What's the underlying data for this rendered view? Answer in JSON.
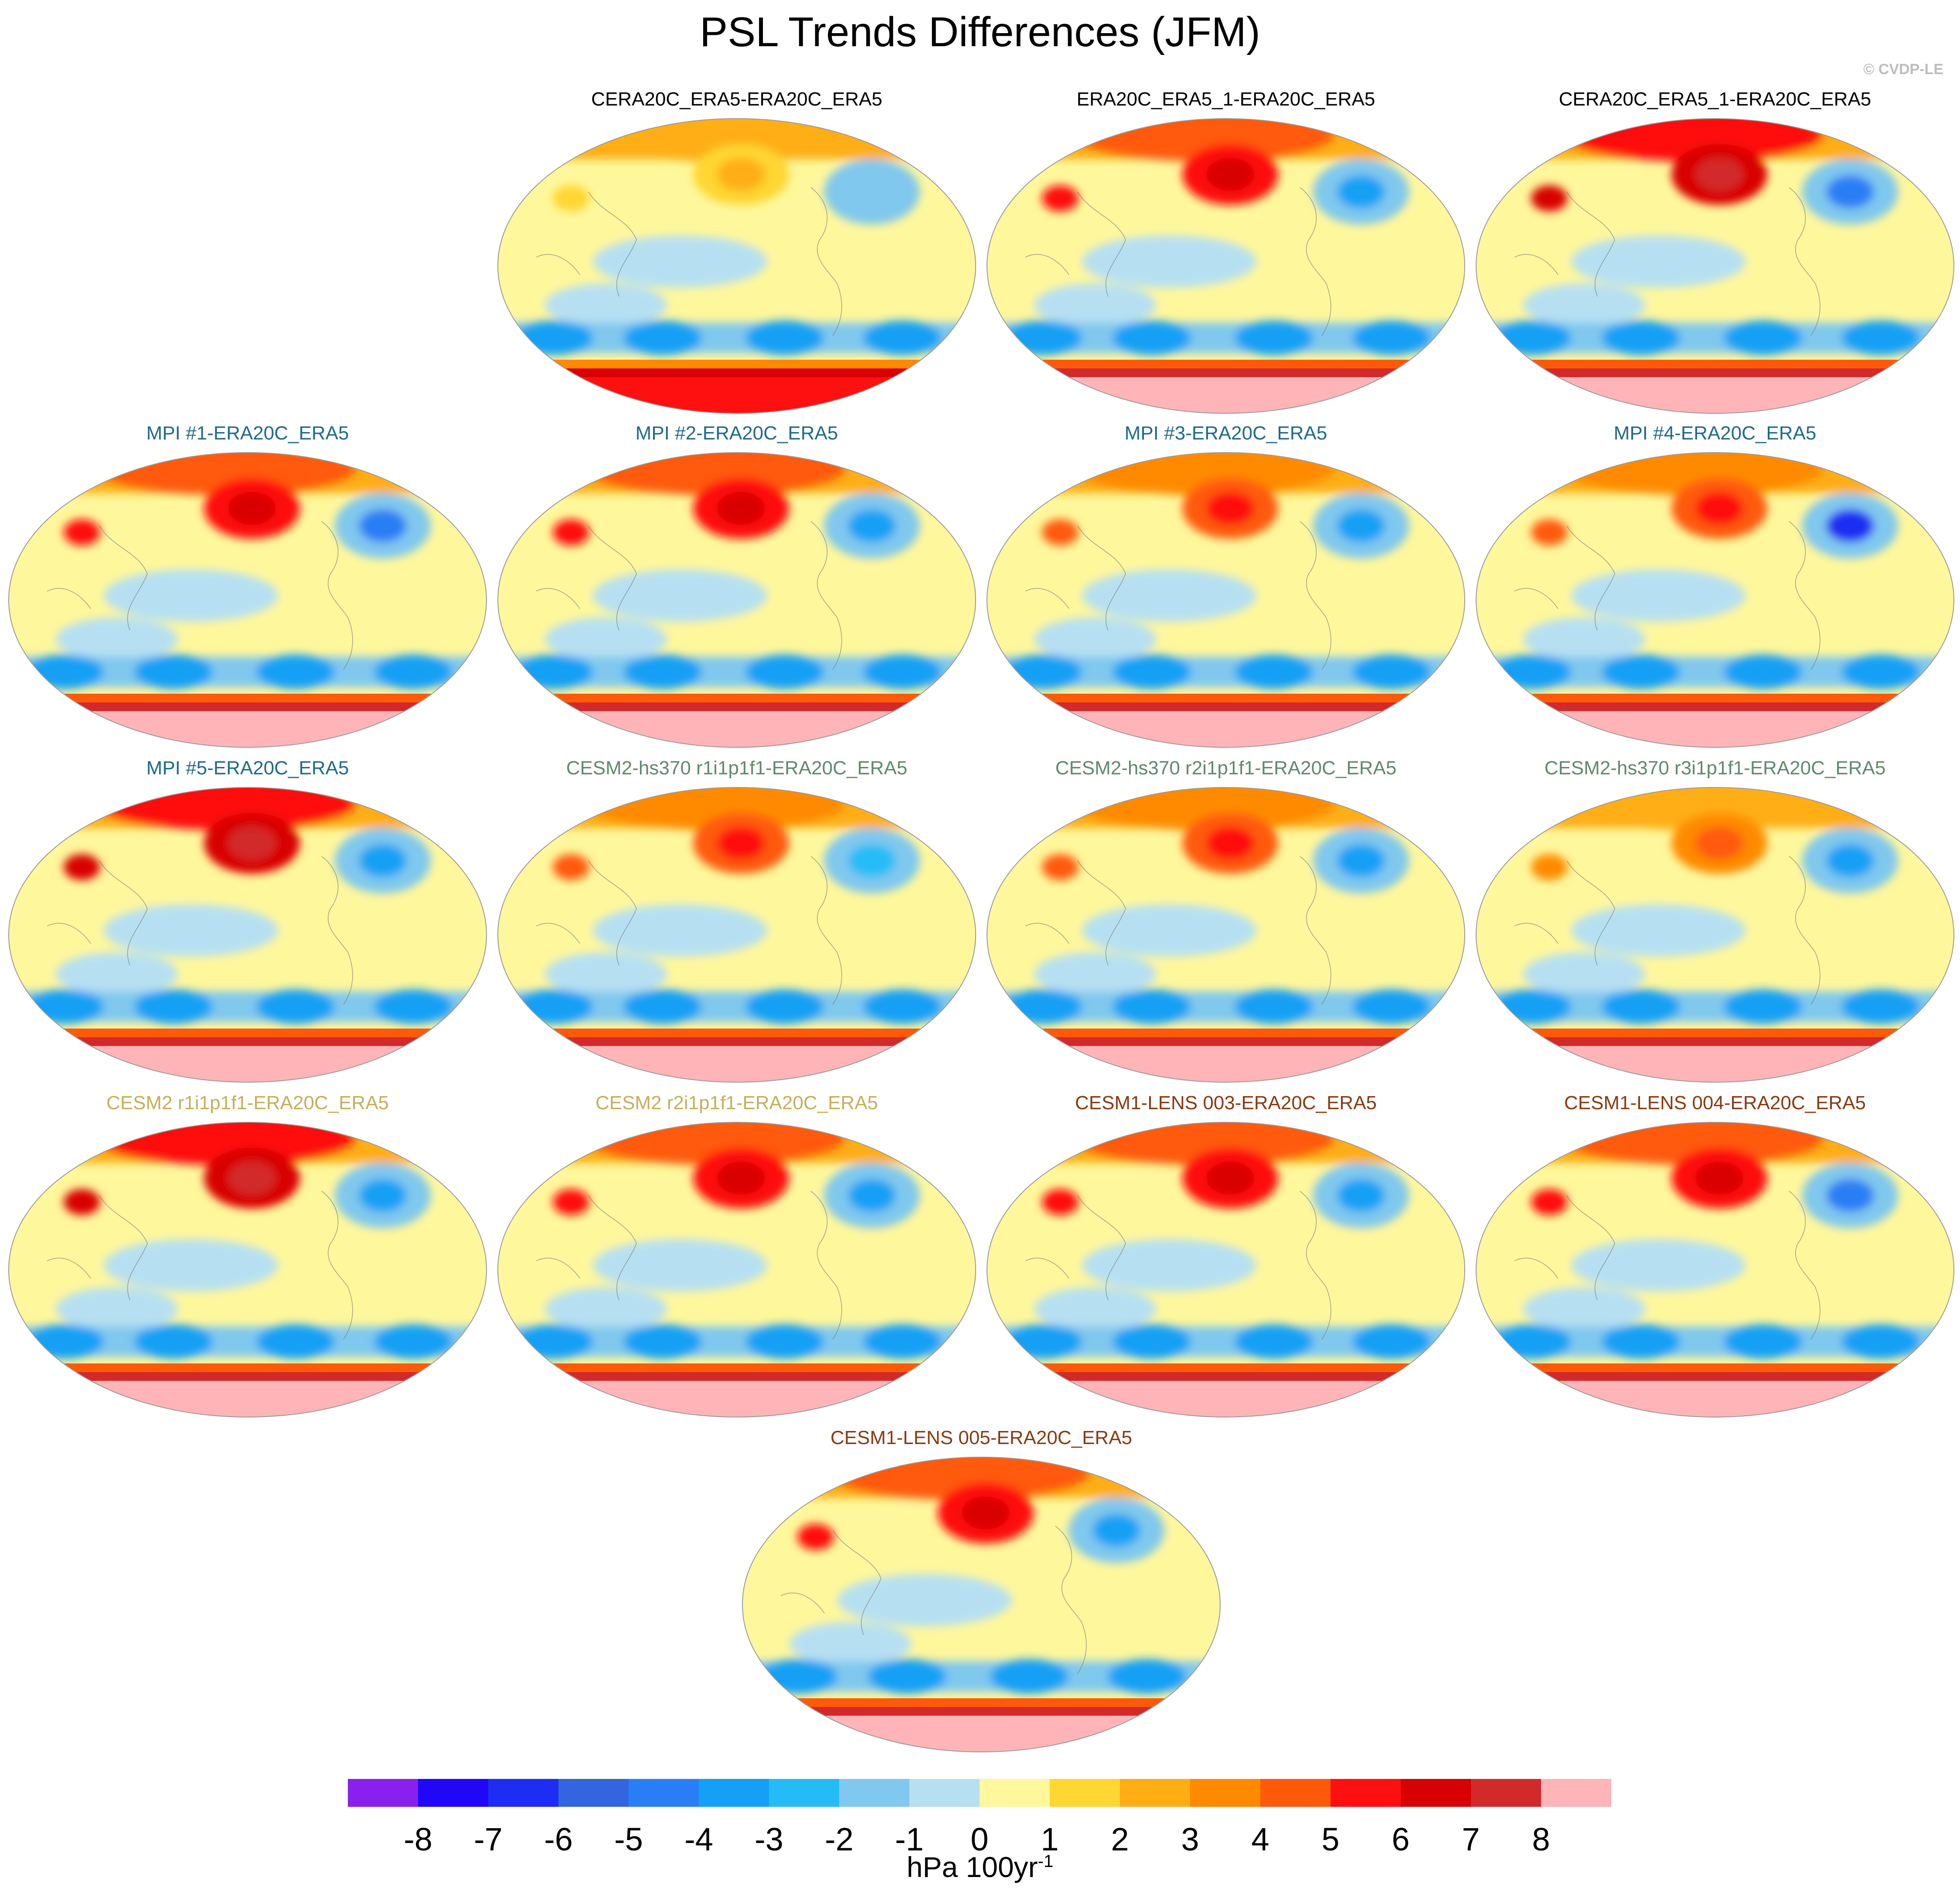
{
  "title": "PSL Trends Differences (JFM)",
  "credit": "© CVDP-LE",
  "colorbar": {
    "tick_labels": [
      "-8",
      "-7",
      "-6",
      "-5",
      "-4",
      "-3",
      "-2",
      "-1",
      "0",
      "1",
      "2",
      "3",
      "4",
      "5",
      "6",
      "7",
      "8"
    ],
    "unit_base": "hPa 100yr",
    "unit_sup": "-1",
    "colors": [
      "#8a20ee",
      "#2008f7",
      "#1d2ef2",
      "#3266de",
      "#2a7ef5",
      "#13a0f5",
      "#25bcf5",
      "#80c8ee",
      "#b6e0f2",
      "#fff79c",
      "#ffd632",
      "#ffae14",
      "#ff8a00",
      "#ff5a0a",
      "#ff1010",
      "#d80000",
      "#d22a2a",
      "#ffb4b8"
    ]
  },
  "chart_data": {
    "type": "heatmap",
    "title": "PSL Trends Differences (JFM)",
    "projection": "global map panels",
    "levels": [
      -8,
      -7,
      -6,
      -5,
      -4,
      -3,
      -2,
      -1,
      0,
      1,
      2,
      3,
      4,
      5,
      6,
      7,
      8
    ],
    "units": "hPa 100yr-1",
    "panels": [
      {
        "title": "CERA20C_ERA5-ERA20C_ERA5",
        "color": "#000000",
        "row": 0,
        "col": 1,
        "ne_high": 2,
        "southern_high": 6,
        "pacific_low": 2,
        "antarctic_high": 5
      },
      {
        "title": "ERA20C_ERA5_1-ERA20C_ERA5",
        "color": "#000000",
        "row": 0,
        "col": 2,
        "ne_high": 6,
        "southern_high": 7,
        "pacific_low": 4,
        "antarctic_high": 8
      },
      {
        "title": "CERA20C_ERA5_1-ERA20C_ERA5",
        "color": "#000000",
        "row": 0,
        "col": 3,
        "ne_high": 7,
        "southern_high": 7,
        "pacific_low": 5,
        "antarctic_high": 8
      },
      {
        "title": "MPI #1-ERA20C_ERA5",
        "color": "#1e6a8a",
        "row": 1,
        "col": 0,
        "ne_high": 6,
        "southern_high": 7,
        "pacific_low": 5,
        "antarctic_high": 8
      },
      {
        "title": "MPI #2-ERA20C_ERA5",
        "color": "#1e6a8a",
        "row": 1,
        "col": 1,
        "ne_high": 6,
        "southern_high": 7,
        "pacific_low": 4,
        "antarctic_high": 8
      },
      {
        "title": "MPI #3-ERA20C_ERA5",
        "color": "#1e6a8a",
        "row": 1,
        "col": 2,
        "ne_high": 5,
        "southern_high": 7,
        "pacific_low": 4,
        "antarctic_high": 8
      },
      {
        "title": "MPI #4-ERA20C_ERA5",
        "color": "#1e6a8a",
        "row": 1,
        "col": 3,
        "ne_high": 5,
        "southern_high": 7,
        "pacific_low": 7,
        "antarctic_high": 8
      },
      {
        "title": "MPI #5-ERA20C_ERA5",
        "color": "#1e6a8a",
        "row": 2,
        "col": 0,
        "ne_high": 7,
        "southern_high": 7,
        "pacific_low": 4,
        "antarctic_high": 8
      },
      {
        "title": "CESM2-hs370 r1i1p1f1-ERA20C_ERA5",
        "color": "#5f8a6a",
        "row": 2,
        "col": 1,
        "ne_high": 5,
        "southern_high": 7,
        "pacific_low": 3,
        "antarctic_high": 8
      },
      {
        "title": "CESM2-hs370 r2i1p1f1-ERA20C_ERA5",
        "color": "#5f8a6a",
        "row": 2,
        "col": 2,
        "ne_high": 5,
        "southern_high": 7,
        "pacific_low": 4,
        "antarctic_high": 8
      },
      {
        "title": "CESM2-hs370 r3i1p1f1-ERA20C_ERA5",
        "color": "#5f8a6a",
        "row": 2,
        "col": 3,
        "ne_high": 4,
        "southern_high": 7,
        "pacific_low": 4,
        "antarctic_high": 8
      },
      {
        "title": "CESM2 r1i1p1f1-ERA20C_ERA5",
        "color": "#c8ae5a",
        "row": 3,
        "col": 0,
        "ne_high": 7,
        "southern_high": 7,
        "pacific_low": 4,
        "antarctic_high": 8
      },
      {
        "title": "CESM2 r2i1p1f1-ERA20C_ERA5",
        "color": "#c8ae5a",
        "row": 3,
        "col": 1,
        "ne_high": 6,
        "southern_high": 7,
        "pacific_low": 4,
        "antarctic_high": 8
      },
      {
        "title": "CESM1-LENS 003-ERA20C_ERA5",
        "color": "#8a3a10",
        "row": 3,
        "col": 2,
        "ne_high": 6,
        "southern_high": 7,
        "pacific_low": 4,
        "antarctic_high": 8
      },
      {
        "title": "CESM1-LENS 004-ERA20C_ERA5",
        "color": "#8a3a10",
        "row": 3,
        "col": 3,
        "ne_high": 6,
        "southern_high": 7,
        "pacific_low": 5,
        "antarctic_high": 8
      },
      {
        "title": "CESM1-LENS 005-ERA20C_ERA5",
        "color": "#8a3a10",
        "row": 4,
        "col": 1.5,
        "ne_high": 6,
        "southern_high": 7,
        "pacific_low": 4,
        "antarctic_high": 8
      }
    ]
  }
}
